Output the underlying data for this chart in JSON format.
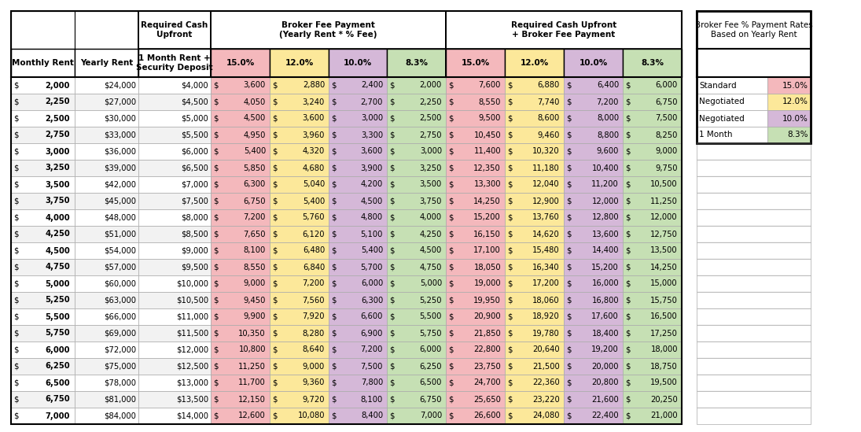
{
  "rows": [
    [
      2000,
      24000,
      4000,
      3600,
      2880,
      2400,
      2000,
      7600,
      6880,
      6400,
      6000
    ],
    [
      2250,
      27000,
      4500,
      4050,
      3240,
      2700,
      2250,
      8550,
      7740,
      7200,
      6750
    ],
    [
      2500,
      30000,
      5000,
      4500,
      3600,
      3000,
      2500,
      9500,
      8600,
      8000,
      7500
    ],
    [
      2750,
      33000,
      5500,
      4950,
      3960,
      3300,
      2750,
      10450,
      9460,
      8800,
      8250
    ],
    [
      3000,
      36000,
      6000,
      5400,
      4320,
      3600,
      3000,
      11400,
      10320,
      9600,
      9000
    ],
    [
      3250,
      39000,
      6500,
      5850,
      4680,
      3900,
      3250,
      12350,
      11180,
      10400,
      9750
    ],
    [
      3500,
      42000,
      7000,
      6300,
      5040,
      4200,
      3500,
      13300,
      12040,
      11200,
      10500
    ],
    [
      3750,
      45000,
      7500,
      6750,
      5400,
      4500,
      3750,
      14250,
      12900,
      12000,
      11250
    ],
    [
      4000,
      48000,
      8000,
      7200,
      5760,
      4800,
      4000,
      15200,
      13760,
      12800,
      12000
    ],
    [
      4250,
      51000,
      8500,
      7650,
      6120,
      5100,
      4250,
      16150,
      14620,
      13600,
      12750
    ],
    [
      4500,
      54000,
      9000,
      8100,
      6480,
      5400,
      4500,
      17100,
      15480,
      14400,
      13500
    ],
    [
      4750,
      57000,
      9500,
      8550,
      6840,
      5700,
      4750,
      18050,
      16340,
      15200,
      14250
    ],
    [
      5000,
      60000,
      10000,
      9000,
      7200,
      6000,
      5000,
      19000,
      17200,
      16000,
      15000
    ],
    [
      5250,
      63000,
      10500,
      9450,
      7560,
      6300,
      5250,
      19950,
      18060,
      16800,
      15750
    ],
    [
      5500,
      66000,
      11000,
      9900,
      7920,
      6600,
      5500,
      20900,
      18920,
      17600,
      16500
    ],
    [
      5750,
      69000,
      11500,
      10350,
      8280,
      6900,
      5750,
      21850,
      19780,
      18400,
      17250
    ],
    [
      6000,
      72000,
      12000,
      10800,
      8640,
      7200,
      6000,
      22800,
      20640,
      19200,
      18000
    ],
    [
      6250,
      75000,
      12500,
      11250,
      9000,
      7500,
      6250,
      23750,
      21500,
      20000,
      18750
    ],
    [
      6500,
      78000,
      13000,
      11700,
      9360,
      7800,
      6500,
      24700,
      22360,
      20800,
      19500
    ],
    [
      6750,
      81000,
      13500,
      12150,
      9720,
      8100,
      6750,
      25650,
      23220,
      21600,
      20250
    ],
    [
      7000,
      84000,
      14000,
      12600,
      10080,
      8400,
      7000,
      26600,
      24080,
      22400,
      21000
    ]
  ],
  "legend_rows": [
    [
      "Standard",
      "15.0%"
    ],
    [
      "Negotiated",
      "12.0%"
    ],
    [
      "Negotiated",
      "10.0%"
    ],
    [
      "1 Month",
      "8.3%"
    ]
  ],
  "col_bg_15": "#f4b8bc",
  "col_bg_12": "#fce89a",
  "col_bg_10": "#d5b8d8",
  "col_bg_83": "#c6e0b4",
  "col_bg_15_legend": "#f4b8bc",
  "col_bg_12_legend": "#fce89a",
  "col_bg_10_legend": "#d5b8d8",
  "col_bg_83_legend": "#c6e0b4",
  "row_bg_odd": "#ffffff",
  "row_bg_even": "#f2f2f2",
  "header_bg": "#ffffff",
  "border_dark": "#000000",
  "border_light": "#d0d0d0"
}
